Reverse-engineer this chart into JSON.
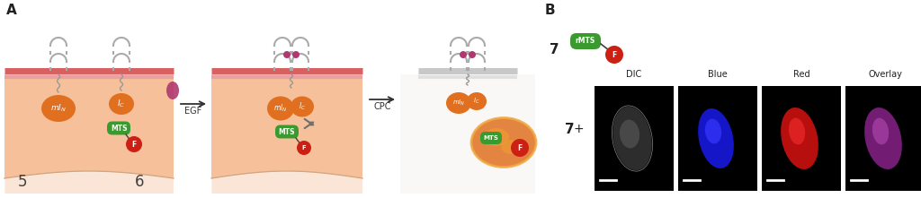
{
  "fig_width": 10.24,
  "fig_height": 2.21,
  "dpi": 100,
  "background_color": "#ffffff",
  "panel_A_label": "A",
  "panel_B_label": "B",
  "egf_label": "EGF",
  "cpc_label": "CPC",
  "num5": "5",
  "num6": "6",
  "num7": "7",
  "num7b": "7",
  "plus_sign": "+",
  "rmts_label": "rMTS",
  "mts_label": "MTS",
  "f_label": "F",
  "dic_label": "DIC",
  "blue_label": "Blue",
  "red_label": "Red",
  "overlay_label": "Overlay",
  "cell_bg_color": "#f5c09a",
  "pink_dot_color": "#b03870",
  "orange_blob_color": "#e07020",
  "green_blob_color": "#3a9a30",
  "red_blob_color": "#cc2015",
  "membrane_pink": "#d86060",
  "membrane_pink2": "#e8a0a0",
  "arrow_color": "#303030",
  "mitochondria_color": "#e07020",
  "mitochondria_outline": "#f0a040",
  "gray_membrane": "#c8c8c8",
  "gray_membrane2": "#e0e0e0"
}
